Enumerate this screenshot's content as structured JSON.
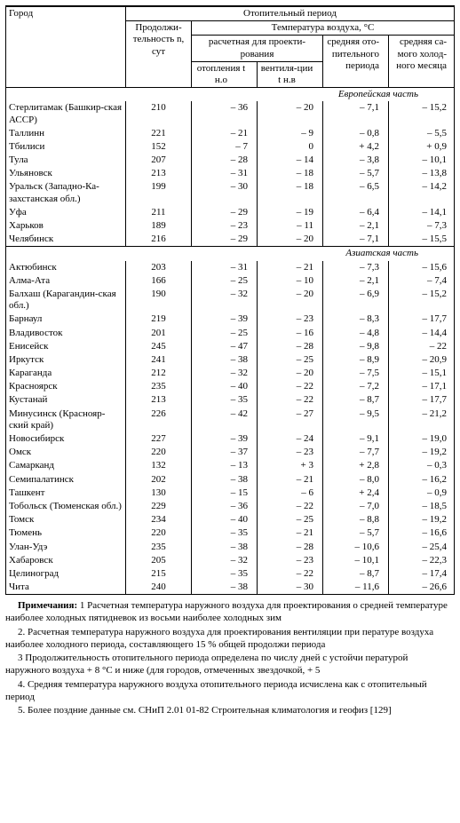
{
  "headers": {
    "city": "Город",
    "main": "Отопительный период",
    "temp": "Температура воздуха, °C",
    "duration": "Продолжи-тельность n, сут",
    "design": "расчетная для проекти-рования",
    "heating": "отопления t н.о",
    "ventilation": "вентиля-ции t н.в",
    "avg_period": "средняя ото-пительного периода",
    "avg_cold": "средняя са-мого холод-ного месяца"
  },
  "sections": [
    {
      "title": "Европейская часть",
      "rows": [
        {
          "city": "Стерлитамак (Башкир-ская АССР)",
          "dur": "210",
          "heat": "– 36",
          "vent": "– 20",
          "avg": "– 7,1",
          "cold": "– 15,2"
        },
        {
          "city": "Таллинн",
          "dur": "221",
          "heat": "– 21",
          "vent": "– 9",
          "avg": "– 0,8",
          "cold": "– 5,5"
        },
        {
          "city": "Тбилиси",
          "dur": "152",
          "heat": "– 7",
          "vent": "0",
          "avg": "+ 4,2",
          "cold": "+ 0,9"
        },
        {
          "city": "Тула",
          "dur": "207",
          "heat": "– 28",
          "vent": "– 14",
          "avg": "– 3,8",
          "cold": "– 10,1"
        },
        {
          "city": "Ульяновск",
          "dur": "213",
          "heat": "– 31",
          "vent": "– 18",
          "avg": "– 5,7",
          "cold": "– 13,8"
        },
        {
          "city": "Уральск (Западно-Ка-захстанская обл.)",
          "dur": "199",
          "heat": "– 30",
          "vent": "– 18",
          "avg": "– 6,5",
          "cold": "– 14,2"
        },
        {
          "city": "Уфа",
          "dur": "211",
          "heat": "– 29",
          "vent": "– 19",
          "avg": "– 6,4",
          "cold": "– 14,1"
        },
        {
          "city": "Харьков",
          "dur": "189",
          "heat": "– 23",
          "vent": "– 11",
          "avg": "– 2,1",
          "cold": "– 7,3"
        },
        {
          "city": "Челябинск",
          "dur": "216",
          "heat": "– 29",
          "vent": "– 20",
          "avg": "– 7,1",
          "cold": "– 15,5"
        }
      ]
    },
    {
      "title": "Азиатская часть",
      "rows": [
        {
          "city": "Актюбинск",
          "dur": "203",
          "heat": "– 31",
          "vent": "– 21",
          "avg": "– 7,3",
          "cold": "– 15,6"
        },
        {
          "city": "Алма-Ата",
          "dur": "166",
          "heat": "– 25",
          "vent": "– 10",
          "avg": "– 2,1",
          "cold": "– 7,4"
        },
        {
          "city": "Балхаш (Карагандин-ская обл.)",
          "dur": "190",
          "heat": "– 32",
          "vent": "– 20",
          "avg": "– 6,9",
          "cold": "– 15,2"
        },
        {
          "city": "Барнаул",
          "dur": "219",
          "heat": "– 39",
          "vent": "– 23",
          "avg": "– 8,3",
          "cold": "– 17,7"
        },
        {
          "city": "Владивосток",
          "dur": "201",
          "heat": "– 25",
          "vent": "– 16",
          "avg": "– 4,8",
          "cold": "– 14,4"
        },
        {
          "city": "Енисейск",
          "dur": "245",
          "heat": "– 47",
          "vent": "– 28",
          "avg": "– 9,8",
          "cold": "– 22"
        },
        {
          "city": "Иркутск",
          "dur": "241",
          "heat": "– 38",
          "vent": "– 25",
          "avg": "– 8,9",
          "cold": "– 20,9"
        },
        {
          "city": "Караганда",
          "dur": "212",
          "heat": "– 32",
          "vent": "– 20",
          "avg": "– 7,5",
          "cold": "– 15,1"
        },
        {
          "city": "Красноярск",
          "dur": "235",
          "heat": "– 40",
          "vent": "– 22",
          "avg": "– 7,2",
          "cold": "– 17,1"
        },
        {
          "city": "Кустанай",
          "dur": "213",
          "heat": "– 35",
          "vent": "– 22",
          "avg": "– 8,7",
          "cold": "– 17,7"
        },
        {
          "city": "Минусинск (Краснояр-ский край)",
          "dur": "226",
          "heat": "– 42",
          "vent": "– 27",
          "avg": "– 9,5",
          "cold": "– 21,2"
        },
        {
          "city": "Новосибирск",
          "dur": "227",
          "heat": "– 39",
          "vent": "– 24",
          "avg": "– 9,1",
          "cold": "– 19,0"
        },
        {
          "city": "Омск",
          "dur": "220",
          "heat": "– 37",
          "vent": "– 23",
          "avg": "– 7,7",
          "cold": "– 19,2"
        },
        {
          "city": "Самарканд",
          "dur": "132",
          "heat": "– 13",
          "vent": "+ 3",
          "avg": "+ 2,8",
          "cold": "– 0,3"
        },
        {
          "city": "Семипалатинск",
          "dur": "202",
          "heat": "– 38",
          "vent": "– 21",
          "avg": "– 8,0",
          "cold": "– 16,2"
        },
        {
          "city": "Ташкент",
          "dur": "130",
          "heat": "– 15",
          "vent": "– 6",
          "avg": "+ 2,4",
          "cold": "– 0,9"
        },
        {
          "city": "Тобольск (Тюменская обл.)",
          "dur": "229",
          "heat": "– 36",
          "vent": "– 22",
          "avg": "– 7,0",
          "cold": "– 18,5"
        },
        {
          "city": "Томск",
          "dur": "234",
          "heat": "– 40",
          "vent": "– 25",
          "avg": "– 8,8",
          "cold": "– 19,2"
        },
        {
          "city": "Тюмень",
          "dur": "220",
          "heat": "– 35",
          "vent": "– 21",
          "avg": "– 5,7",
          "cold": "– 16,6"
        },
        {
          "city": "Улан-Удэ",
          "dur": "235",
          "heat": "– 38",
          "vent": "– 28",
          "avg": "– 10,6",
          "cold": "– 25,4"
        },
        {
          "city": "Хабаровск",
          "dur": "205",
          "heat": "– 32",
          "vent": "– 23",
          "avg": "– 10,1",
          "cold": "– 22,3"
        },
        {
          "city": "Целиноград",
          "dur": "215",
          "heat": "– 35",
          "vent": "– 22",
          "avg": "– 8,7",
          "cold": "– 17,4"
        },
        {
          "city": "Чита",
          "dur": "240",
          "heat": "– 38",
          "vent": "– 30",
          "avg": "– 11,6",
          "cold": "– 26,6"
        }
      ]
    }
  ],
  "notes": {
    "lead": "Примечания:",
    "items": [
      "1 Расчетная температура наружного воздуха для проектирования о средней температуре наиболее холодных пятидневок из восьми наиболее холодных зим",
      "2. Расчетная температура наружного воздуха для проектирования вентиляции при пературе воздуха наиболее холодного периода, составляющего 15 % общей продолжи периода",
      "3 Продолжительность отопительного периода определена по числу дней с устойчи пературой наружного воздуха + 8 °С и ниже (для городов, отмеченных звездочкой, + 5",
      "4. Средняя температура наружного воздуха отопительного периода исчислена как с отопительный период",
      "5. Более поздние данные см. СНиП 2.01 01-82 Строительная климатология и геофиз [129]"
    ]
  }
}
